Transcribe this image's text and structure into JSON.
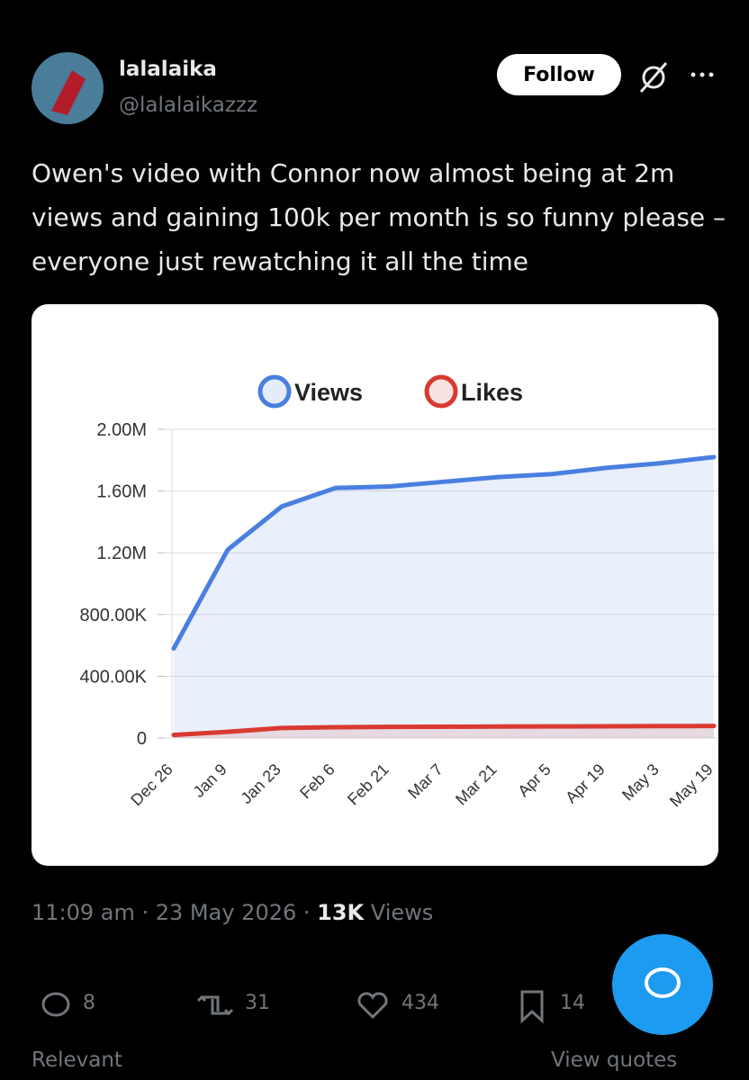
{
  "author": {
    "name": "lalalaika",
    "handle": "@lalalaikazzz"
  },
  "follow_button": "Follow",
  "tweet_text": "Owen's video with Connor now almost being at 2m views and gaining 100k per month is so funny please – everyone just rewatching it all the time",
  "chart_data": {
    "type": "line",
    "categories": [
      "Dec 26",
      "Jan 9",
      "Jan 23",
      "Feb 6",
      "Feb 21",
      "Mar 7",
      "Mar 21",
      "Apr 5",
      "Apr 19",
      "May 3",
      "May 19"
    ],
    "series": [
      {
        "name": "Views",
        "color": "#4a7fe0",
        "values": [
          580000,
          1220000,
          1500000,
          1620000,
          1630000,
          1660000,
          1690000,
          1710000,
          1750000,
          1780000,
          1820000
        ]
      },
      {
        "name": "Likes",
        "color": "#d93a30",
        "values": [
          20000,
          40000,
          65000,
          70000,
          72000,
          73000,
          74000,
          75000,
          76000,
          77000,
          78000
        ]
      }
    ],
    "ylim": [
      0,
      2000000
    ],
    "yticks": [
      0,
      {
        "value": 400000,
        "label": "400.00K"
      },
      {
        "value": 800000,
        "label": "800.00K"
      },
      {
        "value": 1200000,
        "label": "1.20M"
      },
      {
        "value": 1600000,
        "label": "1.60M"
      },
      {
        "value": 2000000,
        "label": "2.00M"
      }
    ],
    "grid": true,
    "legend": "top"
  },
  "meta": {
    "timestamp": "11:09 am · 23 May 2026 ·",
    "views_count": "13K",
    "views_label": "Views"
  },
  "actions": {
    "replies": "8",
    "reposts": "31",
    "likes": "434",
    "bookmarks": "14"
  },
  "footer": {
    "sort": "Relevant",
    "quotes": "View quotes"
  }
}
